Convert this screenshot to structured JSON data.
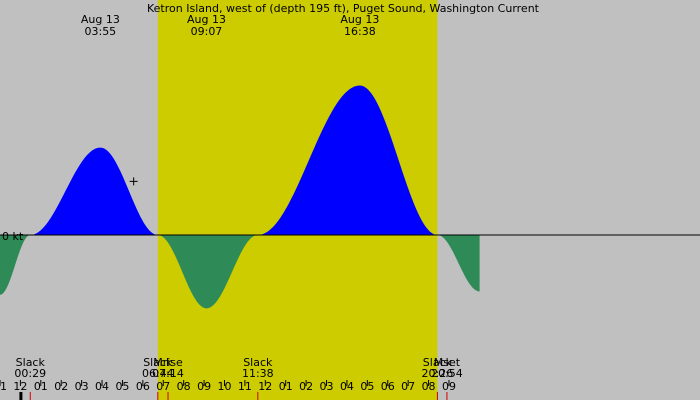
{
  "chart_data": {
    "type": "area",
    "title": "Ketron Island, west of (depth 195 ft), Puget Sound, Washington Current",
    "ylabel": "",
    "xlabel": "",
    "zero_label": "0 kt",
    "x_unit": "hour of day",
    "xlim": [
      -1.0,
      33.3
    ],
    "ylim": [
      -1.92,
      3.9
    ],
    "colors": {
      "background_night": "#c0c0c0",
      "background_day": "#cccc00",
      "flood": "#0000ff",
      "ebb": "#2e8b57",
      "zero_line": "#000000"
    },
    "daylight": {
      "start": 6.733,
      "end": 20.433
    },
    "series": [
      {
        "values": [
          {
            "x": -1.0,
            "y": -1.06
          },
          {
            "x": 0.483,
            "y": 0.0
          },
          {
            "x": 3.917,
            "y": 1.55
          },
          {
            "x": 6.733,
            "y": 0.0
          },
          {
            "x": 9.117,
            "y": -1.3
          },
          {
            "x": 11.633,
            "y": 0.0
          },
          {
            "x": 16.633,
            "y": 2.65
          },
          {
            "x": 20.433,
            "y": 0.0
          },
          {
            "x": 22.5,
            "y": -1.0
          }
        ]
      }
    ],
    "max_annotations": [
      {
        "date": "Aug 13",
        "time": "03:55",
        "x": 3.917
      },
      {
        "date": "Aug 13",
        "time": "09:07",
        "x": 9.117
      },
      {
        "date": "Aug 13",
        "time": "16:38",
        "x": 16.633
      }
    ],
    "events": [
      {
        "label": "Slack",
        "time": "00:29",
        "x": 0.483
      },
      {
        "label": "Slack",
        "time": "06:44",
        "x": 6.733
      },
      {
        "label": "Mrise",
        "time": "07:14",
        "x": 7.233
      },
      {
        "label": "Slack",
        "time": "11:38",
        "x": 11.633
      },
      {
        "label": "Slack",
        "time": "20:26",
        "x": 20.433
      },
      {
        "label": "Mset",
        "time": "20:54",
        "x": 20.9
      }
    ],
    "x_ticks": [
      {
        "label": "11",
        "x": -1
      },
      {
        "label": "12",
        "x": 0
      },
      {
        "label": "01",
        "x": 1
      },
      {
        "label": "02",
        "x": 2
      },
      {
        "label": "03",
        "x": 3
      },
      {
        "label": "04",
        "x": 4
      },
      {
        "label": "05",
        "x": 5
      },
      {
        "label": "06",
        "x": 6
      },
      {
        "label": "07",
        "x": 7
      },
      {
        "label": "08",
        "x": 8
      },
      {
        "label": "09",
        "x": 9
      },
      {
        "label": "10",
        "x": 10
      },
      {
        "label": "11",
        "x": 11
      },
      {
        "label": "12",
        "x": 12
      },
      {
        "label": "01",
        "x": 13
      },
      {
        "label": "02",
        "x": 14
      },
      {
        "label": "03",
        "x": 15
      },
      {
        "label": "04",
        "x": 16
      },
      {
        "label": "05",
        "x": 17
      },
      {
        "label": "06",
        "x": 18
      },
      {
        "label": "07",
        "x": 19
      },
      {
        "label": "08",
        "x": 20
      },
      {
        "label": "09",
        "x": 21
      }
    ],
    "legend": "none",
    "grid": false
  }
}
